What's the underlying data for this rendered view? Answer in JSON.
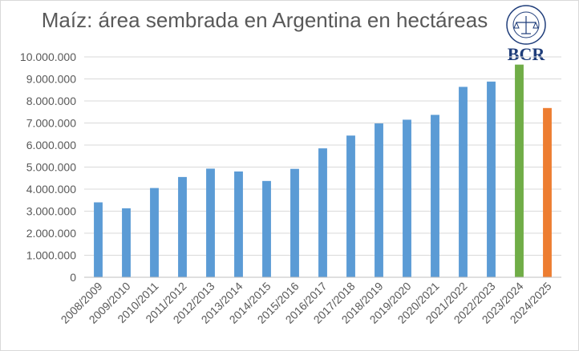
{
  "chart_data": {
    "type": "bar",
    "title": "Maíz: área sembrada  en Argentina en hectáreas",
    "xlabel": "",
    "ylabel": "",
    "ylim": [
      0,
      10000000
    ],
    "yticks": [
      0,
      1000000,
      2000000,
      3000000,
      4000000,
      5000000,
      6000000,
      7000000,
      8000000,
      9000000,
      10000000
    ],
    "ytick_labels": [
      "0",
      "1.000.000",
      "2.000.000",
      "3.000.000",
      "4.000.000",
      "5.000.000",
      "6.000.000",
      "7.000.000",
      "8.000.000",
      "9.000.000",
      "10.000.000"
    ],
    "grid": true,
    "legend": "none",
    "categories": [
      "2008/2009",
      "2009/2010",
      "2010/2011",
      "2011/2012",
      "2012/2013",
      "2013/2014",
      "2014/2015",
      "2015/2016",
      "2016/2017",
      "2017/2018",
      "2018/2019",
      "2019/2020",
      "2020/2021",
      "2021/2022",
      "2022/2023",
      "2023/2024",
      "2024/2025"
    ],
    "values": [
      3400000,
      3130000,
      4050000,
      4550000,
      4930000,
      4800000,
      4370000,
      4920000,
      5850000,
      6430000,
      6980000,
      7150000,
      7370000,
      8640000,
      8880000,
      9650000,
      7680000
    ],
    "bar_colors": [
      "#5b9bd5",
      "#5b9bd5",
      "#5b9bd5",
      "#5b9bd5",
      "#5b9bd5",
      "#5b9bd5",
      "#5b9bd5",
      "#5b9bd5",
      "#5b9bd5",
      "#5b9bd5",
      "#5b9bd5",
      "#5b9bd5",
      "#5b9bd5",
      "#5b9bd5",
      "#5b9bd5",
      "#70ad47",
      "#ed7d31"
    ]
  },
  "logo": {
    "text": "BCR",
    "seal_text": "BOLSA DE COMERCIO DE ROSARIO",
    "color": "#1f3d7a"
  }
}
